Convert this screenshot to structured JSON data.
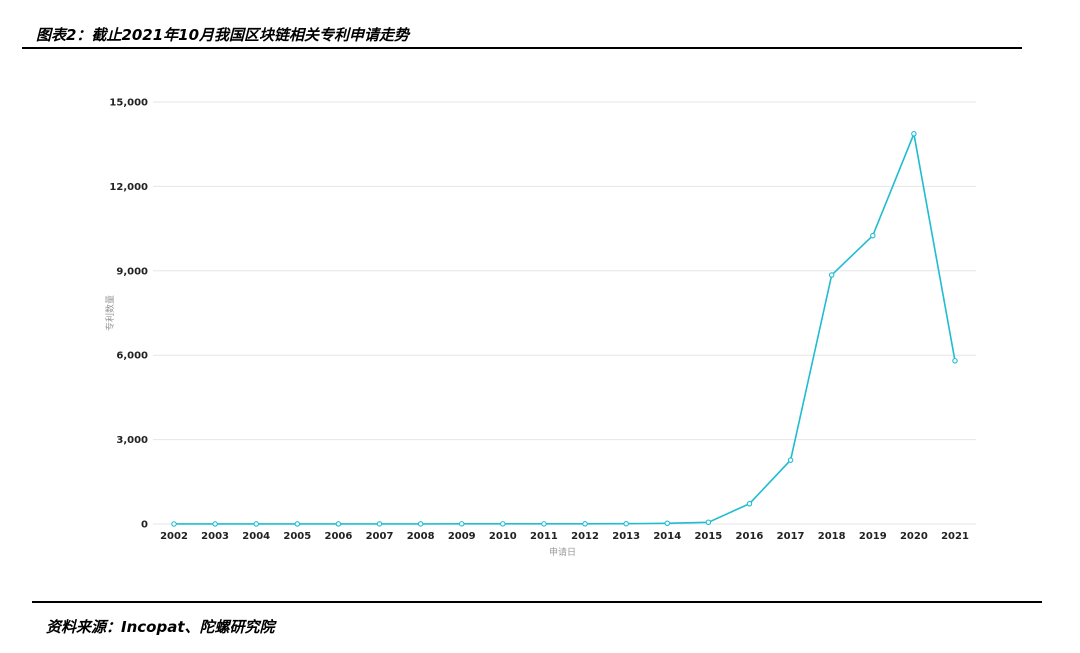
{
  "header": {
    "title": "图表2：截止2021年10月我国区块链相关专利申请走势"
  },
  "footer": {
    "source": "资料来源：Incopat、陀螺研究院"
  },
  "colors": {
    "line": "#1fbcd2",
    "grid": "#e6e6e6",
    "rule": "#000000"
  },
  "chart_data": {
    "type": "line",
    "title": "",
    "xlabel": "申请日",
    "ylabel": "专利数量",
    "ylim": [
      0,
      15000
    ],
    "y_ticks": [
      0,
      3000,
      6000,
      9000,
      12000,
      15000
    ],
    "y_tick_labels": [
      "0",
      "3,000",
      "6,000",
      "9,000",
      "12,000",
      "15,000"
    ],
    "grid": true,
    "legend": "none",
    "categories": [
      "2002",
      "2003",
      "2004",
      "2005",
      "2006",
      "2007",
      "2008",
      "2009",
      "2010",
      "2011",
      "2012",
      "2013",
      "2014",
      "2015",
      "2016",
      "2017",
      "2018",
      "2019",
      "2020",
      "2021"
    ],
    "series": [
      {
        "values": [
          2,
          3,
          3,
          4,
          4,
          5,
          5,
          6,
          6,
          6,
          7,
          10,
          25,
          60,
          720,
          2270,
          8850,
          10250,
          13870,
          5800
        ]
      }
    ]
  }
}
